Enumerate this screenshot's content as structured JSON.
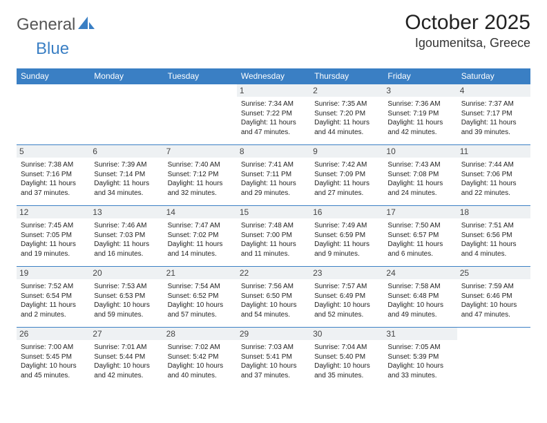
{
  "logo": {
    "part1": "General",
    "part2": "Blue"
  },
  "title": "October 2025",
  "location": "Igoumenitsa, Greece",
  "colors": {
    "header_bg": "#3a7fc4",
    "header_fg": "#ffffff",
    "daynum_bg": "#eef1f3",
    "rule": "#3a7fc4",
    "logo_accent": "#3a7fc4",
    "logo_gray": "#555555"
  },
  "weekdays": [
    "Sunday",
    "Monday",
    "Tuesday",
    "Wednesday",
    "Thursday",
    "Friday",
    "Saturday"
  ],
  "layout": {
    "first_weekday_index": 3,
    "days_in_month": 31,
    "rows": 5,
    "cols": 7
  },
  "days": [
    {
      "n": 1,
      "sunrise": "7:34 AM",
      "sunset": "7:22 PM",
      "daylight": "11 hours and 47 minutes."
    },
    {
      "n": 2,
      "sunrise": "7:35 AM",
      "sunset": "7:20 PM",
      "daylight": "11 hours and 44 minutes."
    },
    {
      "n": 3,
      "sunrise": "7:36 AM",
      "sunset": "7:19 PM",
      "daylight": "11 hours and 42 minutes."
    },
    {
      "n": 4,
      "sunrise": "7:37 AM",
      "sunset": "7:17 PM",
      "daylight": "11 hours and 39 minutes."
    },
    {
      "n": 5,
      "sunrise": "7:38 AM",
      "sunset": "7:16 PM",
      "daylight": "11 hours and 37 minutes."
    },
    {
      "n": 6,
      "sunrise": "7:39 AM",
      "sunset": "7:14 PM",
      "daylight": "11 hours and 34 minutes."
    },
    {
      "n": 7,
      "sunrise": "7:40 AM",
      "sunset": "7:12 PM",
      "daylight": "11 hours and 32 minutes."
    },
    {
      "n": 8,
      "sunrise": "7:41 AM",
      "sunset": "7:11 PM",
      "daylight": "11 hours and 29 minutes."
    },
    {
      "n": 9,
      "sunrise": "7:42 AM",
      "sunset": "7:09 PM",
      "daylight": "11 hours and 27 minutes."
    },
    {
      "n": 10,
      "sunrise": "7:43 AM",
      "sunset": "7:08 PM",
      "daylight": "11 hours and 24 minutes."
    },
    {
      "n": 11,
      "sunrise": "7:44 AM",
      "sunset": "7:06 PM",
      "daylight": "11 hours and 22 minutes."
    },
    {
      "n": 12,
      "sunrise": "7:45 AM",
      "sunset": "7:05 PM",
      "daylight": "11 hours and 19 minutes."
    },
    {
      "n": 13,
      "sunrise": "7:46 AM",
      "sunset": "7:03 PM",
      "daylight": "11 hours and 16 minutes."
    },
    {
      "n": 14,
      "sunrise": "7:47 AM",
      "sunset": "7:02 PM",
      "daylight": "11 hours and 14 minutes."
    },
    {
      "n": 15,
      "sunrise": "7:48 AM",
      "sunset": "7:00 PM",
      "daylight": "11 hours and 11 minutes."
    },
    {
      "n": 16,
      "sunrise": "7:49 AM",
      "sunset": "6:59 PM",
      "daylight": "11 hours and 9 minutes."
    },
    {
      "n": 17,
      "sunrise": "7:50 AM",
      "sunset": "6:57 PM",
      "daylight": "11 hours and 6 minutes."
    },
    {
      "n": 18,
      "sunrise": "7:51 AM",
      "sunset": "6:56 PM",
      "daylight": "11 hours and 4 minutes."
    },
    {
      "n": 19,
      "sunrise": "7:52 AM",
      "sunset": "6:54 PM",
      "daylight": "11 hours and 2 minutes."
    },
    {
      "n": 20,
      "sunrise": "7:53 AM",
      "sunset": "6:53 PM",
      "daylight": "10 hours and 59 minutes."
    },
    {
      "n": 21,
      "sunrise": "7:54 AM",
      "sunset": "6:52 PM",
      "daylight": "10 hours and 57 minutes."
    },
    {
      "n": 22,
      "sunrise": "7:56 AM",
      "sunset": "6:50 PM",
      "daylight": "10 hours and 54 minutes."
    },
    {
      "n": 23,
      "sunrise": "7:57 AM",
      "sunset": "6:49 PM",
      "daylight": "10 hours and 52 minutes."
    },
    {
      "n": 24,
      "sunrise": "7:58 AM",
      "sunset": "6:48 PM",
      "daylight": "10 hours and 49 minutes."
    },
    {
      "n": 25,
      "sunrise": "7:59 AM",
      "sunset": "6:46 PM",
      "daylight": "10 hours and 47 minutes."
    },
    {
      "n": 26,
      "sunrise": "7:00 AM",
      "sunset": "5:45 PM",
      "daylight": "10 hours and 45 minutes."
    },
    {
      "n": 27,
      "sunrise": "7:01 AM",
      "sunset": "5:44 PM",
      "daylight": "10 hours and 42 minutes."
    },
    {
      "n": 28,
      "sunrise": "7:02 AM",
      "sunset": "5:42 PM",
      "daylight": "10 hours and 40 minutes."
    },
    {
      "n": 29,
      "sunrise": "7:03 AM",
      "sunset": "5:41 PM",
      "daylight": "10 hours and 37 minutes."
    },
    {
      "n": 30,
      "sunrise": "7:04 AM",
      "sunset": "5:40 PM",
      "daylight": "10 hours and 35 minutes."
    },
    {
      "n": 31,
      "sunrise": "7:05 AM",
      "sunset": "5:39 PM",
      "daylight": "10 hours and 33 minutes."
    }
  ],
  "labels": {
    "sunrise": "Sunrise:",
    "sunset": "Sunset:",
    "daylight": "Daylight:"
  }
}
